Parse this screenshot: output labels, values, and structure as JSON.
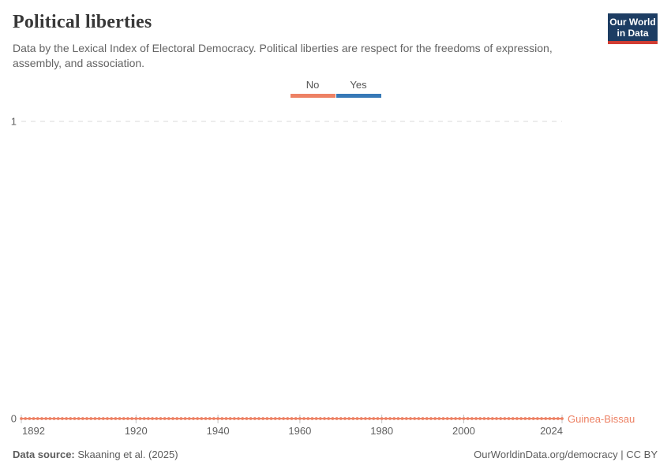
{
  "header": {
    "title": "Political liberties",
    "subtitle": "Data by the Lexical Index of Electoral Democracy. Political liberties are respect for the freedoms of expression, assembly, and association.",
    "logo": {
      "line1": "Our World",
      "line2": "in Data",
      "bg_color": "#1d3d63",
      "accent_color": "#d13d33"
    }
  },
  "legend": {
    "items": [
      {
        "label": "No",
        "color": "#ED8164"
      },
      {
        "label": "Yes",
        "color": "#3779B7"
      }
    ]
  },
  "chart_data": {
    "type": "line",
    "title": "Political liberties",
    "xlabel": "",
    "ylabel": "",
    "xlim": [
      1892,
      2024
    ],
    "ylim": [
      0,
      1
    ],
    "x_ticks": [
      1892,
      1920,
      1940,
      1960,
      1980,
      2000,
      2024
    ],
    "y_ticks": [
      0,
      1
    ],
    "grid": "dashed horizontal gridline at y=1, solid baseline at y=0",
    "legend_position": "top-center",
    "legend_entries": [
      "No",
      "Yes"
    ],
    "series": [
      {
        "name": "Guinea-Bissau",
        "color": "#ED8164",
        "x_start": 1892,
        "x_end": 2024,
        "x_step": 1,
        "constant_value": 0,
        "note": "value is 0 (No) for every year from 1892 to 2024; one dot marker per year"
      }
    ],
    "value_labels": {
      "0": "No",
      "1": "Yes"
    },
    "gridline_color": "#d8d8d8",
    "tick_color": "#c4c4c4"
  },
  "footer": {
    "source_label": "Data source:",
    "source_value": "Skaaning et al. (2025)",
    "credit": "OurWorldinData.org/democracy | CC BY"
  }
}
